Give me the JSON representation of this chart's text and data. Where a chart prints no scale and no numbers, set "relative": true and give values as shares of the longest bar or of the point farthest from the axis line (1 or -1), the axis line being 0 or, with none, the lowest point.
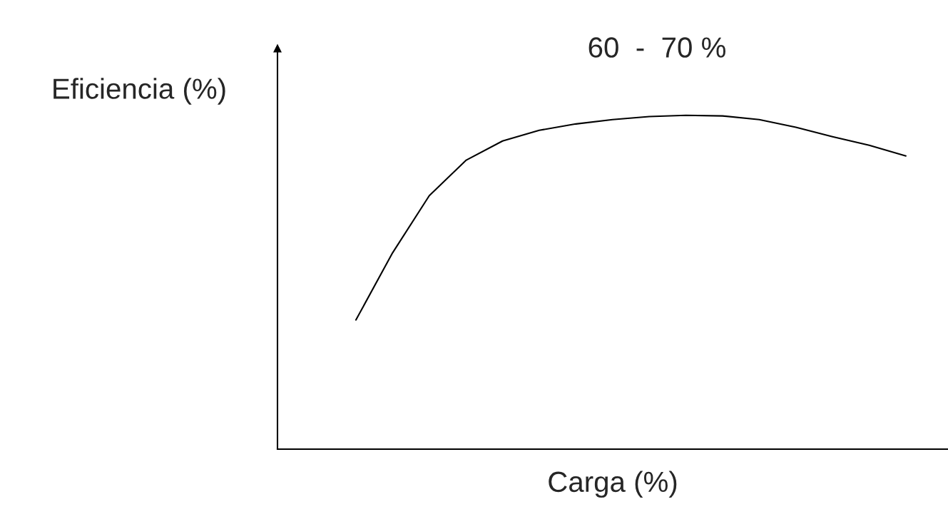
{
  "chart_data": {
    "type": "line",
    "relative": true,
    "xlabel": "Carga (%)",
    "ylabel": "Eficiencia (%)",
    "annotations": [
      "60  -  70 %"
    ],
    "categories": [
      null,
      null,
      null,
      null,
      null,
      null,
      null,
      null,
      null,
      null,
      null,
      null,
      null,
      null,
      null,
      null
    ],
    "series": [
      {
        "color": "#000000",
        "values": [
          0.387,
          0.588,
          0.759,
          0.865,
          0.923,
          0.955,
          0.974,
          0.987,
          0.996,
          1,
          0.998,
          0.987,
          0.964,
          0.936,
          0.91,
          0.878
        ]
      }
    ],
    "tick_labels": false,
    "grid": false,
    "legend": false
  }
}
